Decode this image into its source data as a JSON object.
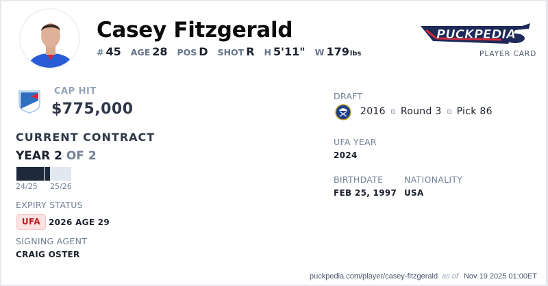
{
  "player": {
    "name": "Casey Fitzgerald",
    "number_label": "#",
    "number": "45",
    "age_label": "AGE",
    "age": "28",
    "pos_label": "POS",
    "pos": "D",
    "shot_label": "SHOT",
    "shot": "R",
    "height_label": "H",
    "height": "5'11\"",
    "weight_label": "W",
    "weight": "179",
    "weight_unit": "lbs"
  },
  "brand": {
    "logo_text": "PuckPedia",
    "subtitle": "PLAYER CARD"
  },
  "cap": {
    "label": "CAP HIT",
    "value": "$775,000",
    "team_logo": "new-york-rangers-logo"
  },
  "contract": {
    "title": "CURRENT CONTRACT",
    "year_label": "YEAR 2",
    "of_label": "OF 2",
    "seasons": [
      {
        "label": "24/25",
        "progress": 1.0
      },
      {
        "label": "25/26",
        "progress": 0.22
      }
    ]
  },
  "expiry": {
    "label": "EXPIRY STATUS",
    "badge": "UFA",
    "detail": "2026 AGE 29"
  },
  "agent": {
    "label": "SIGNING AGENT",
    "value": "CRAIG OSTER"
  },
  "draft": {
    "label": "DRAFT",
    "team_logo": "buffalo-sabres-logo",
    "year": "2016",
    "round": "Round 3",
    "pick": "Pick 86"
  },
  "ufa_year": {
    "label": "UFA YEAR",
    "value": "2024"
  },
  "birthdate": {
    "label": "BIRTHDATE",
    "value": "FEB 25, 1997"
  },
  "nationality": {
    "label": "NATIONALITY",
    "value": "USA"
  },
  "footer": {
    "url": "puckpedia.com/player/casey-fitzgerald",
    "as_of": "as of",
    "timestamp": "Nov 19 2025 01:00ET"
  },
  "colors": {
    "navy": "#1e293b",
    "ufa_badge_bg": "#fde2e2",
    "ufa_badge_text": "#b91c1c",
    "rangers_blue": "#2563eb"
  }
}
